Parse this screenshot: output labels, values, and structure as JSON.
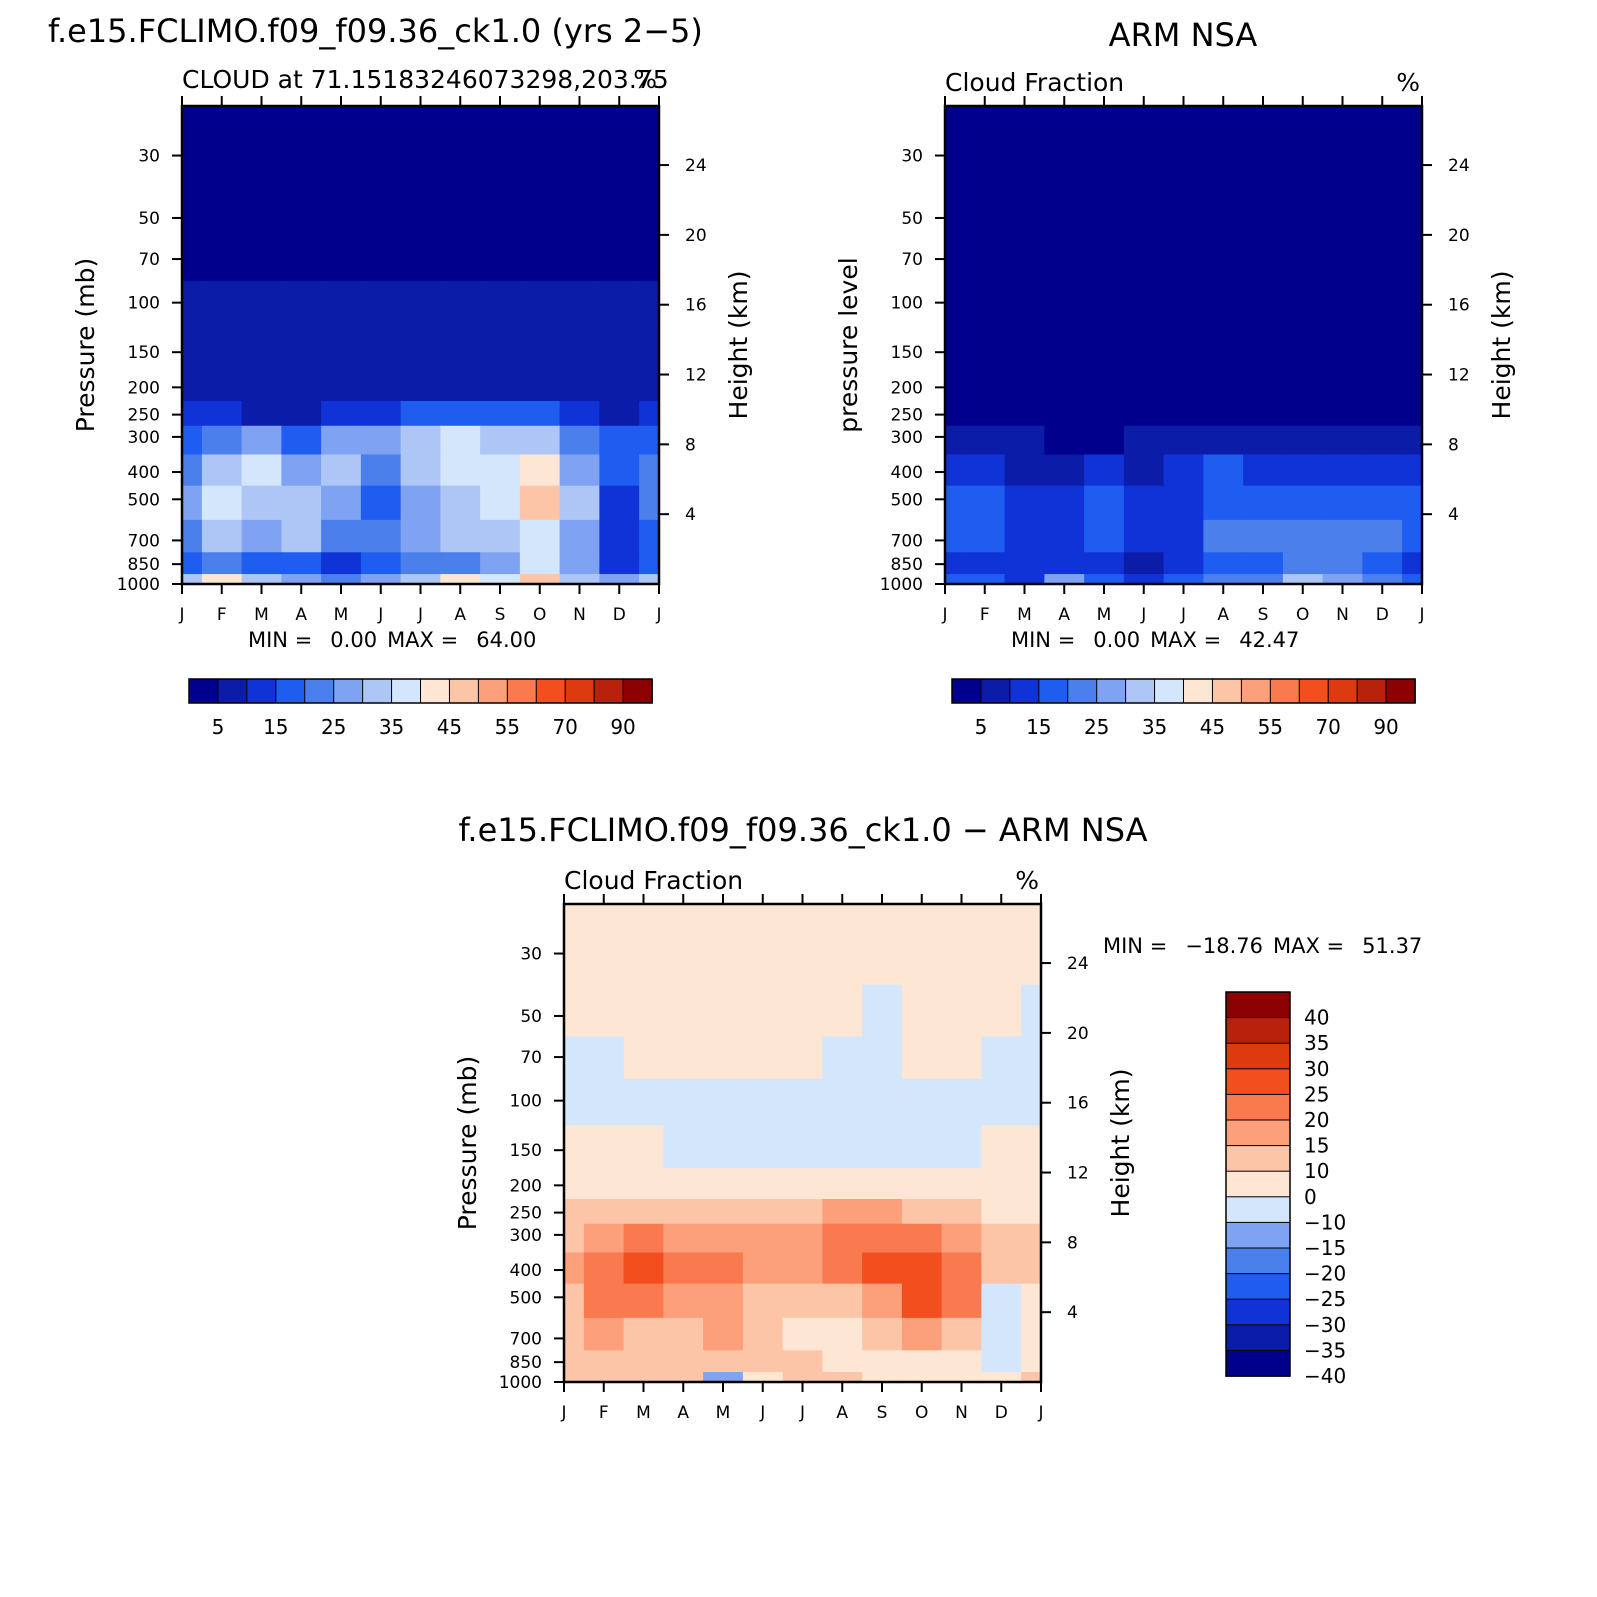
{
  "chart_data": [
    {
      "type": "heatmap",
      "panel": "model",
      "title": "f.e15.FCLIMO.f09_f09.36_ck1.0 (yrs 2−5)",
      "subtitle_left": "CLOUD at 71.15183246073298,203.75",
      "subtitle_right": "%",
      "ylabel": "Pressure (mb)",
      "ylabel_right": "Height (km)",
      "x_tick_labels": [
        "J",
        "F",
        "M",
        "A",
        "M",
        "J",
        "J",
        "A",
        "S",
        "O",
        "N",
        "D",
        "J"
      ],
      "y_tick_labels": [
        "30",
        "50",
        "70",
        "100",
        "150",
        "200",
        "250",
        "300",
        "400",
        "500",
        "700",
        "850",
        "1000"
      ],
      "right_tick_labels": [
        "24",
        "20",
        "16",
        "12",
        "8",
        "4"
      ],
      "stats": {
        "min_label": "MIN =",
        "min": "0.00",
        "max_label": "MAX =",
        "max": "64.00"
      },
      "colorbar": {
        "orientation": "horizontal",
        "labels": [
          "5",
          "15",
          "25",
          "35",
          "45",
          "55",
          "70",
          "90"
        ]
      },
      "levels": [
        30,
        50,
        70,
        100,
        150,
        200,
        250,
        300,
        400,
        500,
        700,
        850,
        1000
      ],
      "grid": [
        [
          0,
          0,
          0,
          0,
          0,
          0,
          0,
          0,
          0,
          0,
          0,
          0,
          0
        ],
        [
          0,
          0,
          0,
          0,
          0,
          0,
          0,
          0,
          0,
          0,
          0,
          0,
          0
        ],
        [
          0,
          0,
          0,
          0,
          0,
          0,
          0,
          0,
          0,
          0,
          0,
          0,
          0
        ],
        [
          1,
          1,
          1,
          1,
          1,
          1,
          1,
          1,
          1,
          1,
          1,
          1,
          1
        ],
        [
          1,
          1,
          1,
          1,
          1,
          1,
          1,
          1,
          1,
          1,
          1,
          1,
          1
        ],
        [
          1,
          1,
          1,
          1,
          1,
          1,
          1,
          1,
          1,
          1,
          1,
          1,
          1
        ],
        [
          2,
          2,
          1,
          1,
          2,
          2,
          3,
          3,
          3,
          3,
          2,
          1,
          2
        ],
        [
          3,
          4,
          5,
          3,
          5,
          5,
          6,
          7,
          6,
          6,
          4,
          3,
          3
        ],
        [
          4,
          6,
          7,
          5,
          6,
          4,
          6,
          7,
          7,
          8,
          5,
          3,
          4
        ],
        [
          5,
          7,
          6,
          6,
          5,
          3,
          5,
          6,
          7,
          9,
          6,
          2,
          4
        ],
        [
          4,
          6,
          5,
          6,
          4,
          4,
          5,
          6,
          6,
          7,
          5,
          2,
          3
        ],
        [
          3,
          4,
          3,
          3,
          2,
          3,
          4,
          4,
          5,
          7,
          5,
          2,
          3
        ],
        [
          6,
          8,
          6,
          5,
          4,
          5,
          6,
          8,
          7,
          9,
          6,
          5,
          6
        ]
      ]
    },
    {
      "type": "heatmap",
      "panel": "observation",
      "title": "ARM NSA",
      "subtitle_left": "Cloud Fraction",
      "subtitle_right": "%",
      "ylabel": "pressure level",
      "ylabel_right": "Height (km)",
      "x_tick_labels": [
        "J",
        "F",
        "M",
        "A",
        "M",
        "J",
        "J",
        "A",
        "S",
        "O",
        "N",
        "D",
        "J"
      ],
      "y_tick_labels": [
        "30",
        "50",
        "70",
        "100",
        "150",
        "200",
        "250",
        "300",
        "400",
        "500",
        "700",
        "850",
        "1000"
      ],
      "right_tick_labels": [
        "24",
        "20",
        "16",
        "12",
        "8",
        "4"
      ],
      "stats": {
        "min_label": "MIN =",
        "min": "0.00",
        "max_label": "MAX =",
        "max": "42.47"
      },
      "colorbar": {
        "orientation": "horizontal",
        "labels": [
          "5",
          "15",
          "25",
          "35",
          "45",
          "55",
          "70",
          "90"
        ]
      },
      "levels": [
        30,
        50,
        70,
        100,
        150,
        200,
        250,
        300,
        400,
        500,
        700,
        850,
        1000
      ],
      "grid": [
        [
          0,
          0,
          0,
          0,
          0,
          0,
          0,
          0,
          0,
          0,
          0,
          0,
          0
        ],
        [
          0,
          0,
          0,
          0,
          0,
          0,
          0,
          0,
          0,
          0,
          0,
          0,
          0
        ],
        [
          0,
          0,
          0,
          0,
          0,
          0,
          0,
          0,
          0,
          0,
          0,
          0,
          0
        ],
        [
          0,
          0,
          0,
          0,
          0,
          0,
          0,
          0,
          0,
          0,
          0,
          0,
          0
        ],
        [
          0,
          0,
          0,
          0,
          0,
          0,
          0,
          0,
          0,
          0,
          0,
          0,
          0
        ],
        [
          0,
          0,
          0,
          0,
          0,
          0,
          0,
          0,
          0,
          0,
          0,
          0,
          0
        ],
        [
          0,
          0,
          0,
          0,
          0,
          0,
          0,
          0,
          0,
          0,
          0,
          0,
          0
        ],
        [
          1,
          1,
          1,
          0,
          0,
          1,
          1,
          1,
          1,
          1,
          1,
          1,
          1
        ],
        [
          2,
          2,
          1,
          1,
          2,
          1,
          2,
          3,
          2,
          2,
          2,
          2,
          2
        ],
        [
          3,
          3,
          2,
          2,
          3,
          2,
          2,
          3,
          3,
          3,
          3,
          3,
          3
        ],
        [
          3,
          3,
          2,
          2,
          3,
          2,
          2,
          4,
          4,
          4,
          4,
          4,
          3
        ],
        [
          2,
          2,
          2,
          2,
          2,
          1,
          2,
          3,
          3,
          4,
          4,
          3,
          2
        ],
        [
          3,
          3,
          2,
          5,
          3,
          2,
          3,
          4,
          4,
          6,
          5,
          4,
          3
        ]
      ]
    },
    {
      "type": "heatmap",
      "panel": "difference",
      "title": "f.e15.FCLIMO.f09_f09.36_ck1.0 − ARM NSA",
      "subtitle_left": "Cloud Fraction",
      "subtitle_right": "%",
      "ylabel": "Pressure (mb)",
      "ylabel_right": "Height (km)",
      "x_tick_labels": [
        "J",
        "F",
        "M",
        "A",
        "M",
        "J",
        "J",
        "A",
        "S",
        "O",
        "N",
        "D",
        "J"
      ],
      "y_tick_labels": [
        "30",
        "50",
        "70",
        "100",
        "150",
        "200",
        "250",
        "300",
        "400",
        "500",
        "700",
        "850",
        "1000"
      ],
      "right_tick_labels": [
        "24",
        "20",
        "16",
        "12",
        "8",
        "4"
      ],
      "stats": {
        "min_label": "MIN =",
        "min": "−18.76",
        "max_label": "MAX =",
        "max": "51.37"
      },
      "colorbar": {
        "orientation": "vertical",
        "labels": [
          "40",
          "35",
          "30",
          "25",
          "20",
          "15",
          "10",
          "0",
          "−10",
          "−15",
          "−20",
          "−25",
          "−30",
          "−35",
          "−40"
        ]
      },
      "levels": [
        30,
        50,
        70,
        100,
        150,
        200,
        250,
        300,
        400,
        500,
        700,
        850,
        1000
      ],
      "grid": [
        [
          7,
          7,
          7,
          7,
          7,
          7,
          7,
          7,
          7,
          7,
          7,
          7,
          7
        ],
        [
          7,
          7,
          7,
          7,
          7,
          7,
          7,
          7,
          6,
          7,
          7,
          7,
          6
        ],
        [
          6,
          6,
          7,
          7,
          7,
          7,
          7,
          6,
          6,
          7,
          7,
          6,
          6
        ],
        [
          6,
          6,
          6,
          6,
          6,
          6,
          6,
          6,
          6,
          6,
          6,
          6,
          6
        ],
        [
          7,
          7,
          7,
          6,
          6,
          6,
          6,
          6,
          6,
          6,
          6,
          7,
          7
        ],
        [
          7,
          7,
          7,
          7,
          7,
          7,
          7,
          7,
          7,
          7,
          7,
          7,
          7
        ],
        [
          8,
          8,
          8,
          8,
          8,
          8,
          8,
          9,
          9,
          8,
          8,
          7,
          7
        ],
        [
          8,
          9,
          10,
          9,
          9,
          9,
          9,
          10,
          10,
          10,
          9,
          8,
          8
        ],
        [
          9,
          10,
          11,
          10,
          10,
          9,
          9,
          10,
          11,
          11,
          10,
          8,
          8
        ],
        [
          8,
          10,
          10,
          9,
          9,
          8,
          8,
          8,
          9,
          11,
          10,
          6,
          7
        ],
        [
          8,
          9,
          8,
          8,
          9,
          8,
          7,
          7,
          8,
          9,
          8,
          6,
          7
        ],
        [
          8,
          8,
          8,
          8,
          8,
          8,
          8,
          7,
          7,
          7,
          7,
          6,
          7
        ],
        [
          8,
          8,
          8,
          8,
          5,
          7,
          8,
          8,
          7,
          7,
          7,
          7,
          8
        ]
      ]
    }
  ],
  "colors": {
    "model_palette": [
      "#00008c",
      "#0a1ca8",
      "#0f33d6",
      "#1f5cf0",
      "#4a7fec",
      "#7fa3f2",
      "#aec6f6",
      "#d3e6fb",
      "#fde7d4",
      "#fcc5a8",
      "#fba07a",
      "#f87a4e",
      "#f24e1e",
      "#dd3a0f",
      "#b8220c",
      "#8b0000"
    ],
    "diff_palette": [
      "#00008c",
      "#0a1ca8",
      "#0f33d6",
      "#1f5cf0",
      "#4a7fec",
      "#7fa3f2",
      "#d3e6fb",
      "#fde7d4",
      "#fcc5a8",
      "#fba07a",
      "#f87a4e",
      "#f24e1e",
      "#dd3a0f",
      "#b8220c",
      "#8b0000"
    ]
  }
}
